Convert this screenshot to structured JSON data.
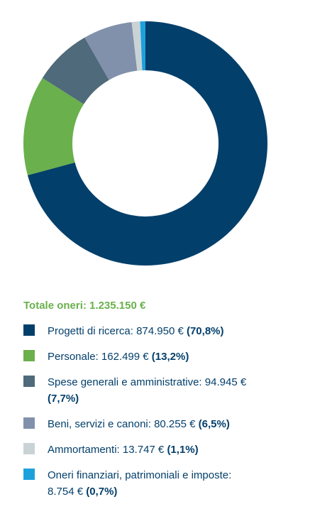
{
  "chart_data": {
    "type": "pie",
    "donut": true,
    "subtitle": "Totale oneri: 1.235.150 €",
    "categories": [
      "Progetti di ricerca:",
      "Personale:",
      "Spese generali e amministrative:",
      "Beni, servizi e canoni:",
      "Ammortamenti:",
      "Oneri finanziari, patrimoniali e imposte:"
    ],
    "values": [
      70.8,
      13.2,
      7.7,
      6.5,
      1.1,
      0.7
    ],
    "value_labels": [
      "(70,8%)",
      "(13,2%)",
      "(7,7%)",
      "(6,5%)",
      "(1,1%)",
      "(0,7%)"
    ],
    "amounts": [
      874950,
      162499,
      94945,
      80255,
      13747,
      8754
    ],
    "amount_labels": [
      "874.950 €",
      "162.499 €",
      "94.945 €",
      "80.255 €",
      "13.747 €",
      "8.754 €"
    ],
    "colors": [
      "#033f6b",
      "#6ab04c",
      "#4f6a7a",
      "#8191ab",
      "#c9d3d6",
      "#1da1dc"
    ]
  }
}
